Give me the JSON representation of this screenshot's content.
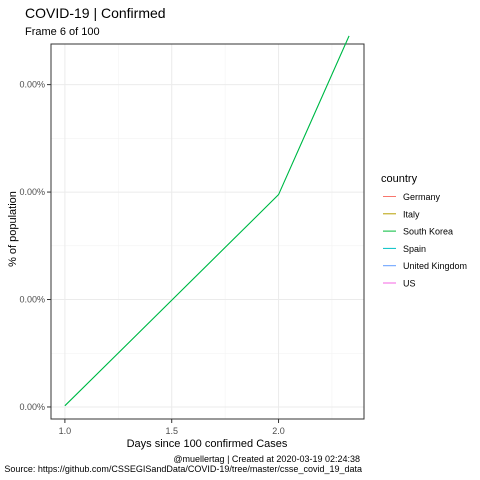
{
  "chart_data": {
    "type": "line",
    "title": "COVID-19 | Confirmed",
    "subtitle": "Frame 6 of 100",
    "xlabel": "Days since 100 confirmed Cases",
    "ylabel": "% of population",
    "caption_line1": "@muellertag | Created at  2020-03-19 02:24:38",
    "caption_line2": "Source: https://github.com/CSSEGISandData/COVID-19/tree/master/csse_covid_19_data",
    "xlim": [
      0.935,
      2.4
    ],
    "ylim": [
      -1.12e-05,
      0.0003378
    ],
    "x_ticks": [
      {
        "value": 1.0,
        "label": "1.0"
      },
      {
        "value": 1.5,
        "label": "1.5"
      },
      {
        "value": 2.0,
        "label": "2.0"
      }
    ],
    "y_ticks": [
      {
        "value": 0.0,
        "label": "0.00%"
      },
      {
        "value": 0.0001,
        "label": "0.00%"
      },
      {
        "value": 0.0002,
        "label": "0.00%"
      },
      {
        "value": 0.0003,
        "label": "0.00%"
      }
    ],
    "legend": {
      "title": "country",
      "position": "right",
      "entries": [
        {
          "name": "Germany",
          "color": "#F8766D"
        },
        {
          "name": "Italy",
          "color": "#B79F00"
        },
        {
          "name": "South Korea",
          "color": "#00BA38"
        },
        {
          "name": "Spain",
          "color": "#00BFC4"
        },
        {
          "name": "United Kingdom",
          "color": "#619CFF"
        },
        {
          "name": "US",
          "color": "#F564E3"
        }
      ]
    },
    "series": [
      {
        "country": "Spain",
        "color": "#00BFC4",
        "x": [
          1.0,
          2.0,
          2.33
        ],
        "y": [
          1.1e-06,
          0.0001976,
          0.0003453
        ]
      },
      {
        "country": "South Korea",
        "color": "#00BA38",
        "x": [
          1.0,
          2.0,
          2.33
        ],
        "y": [
          1.1e-06,
          0.0001976,
          0.0003453
        ]
      }
    ],
    "grid": true,
    "panel_border": true
  }
}
